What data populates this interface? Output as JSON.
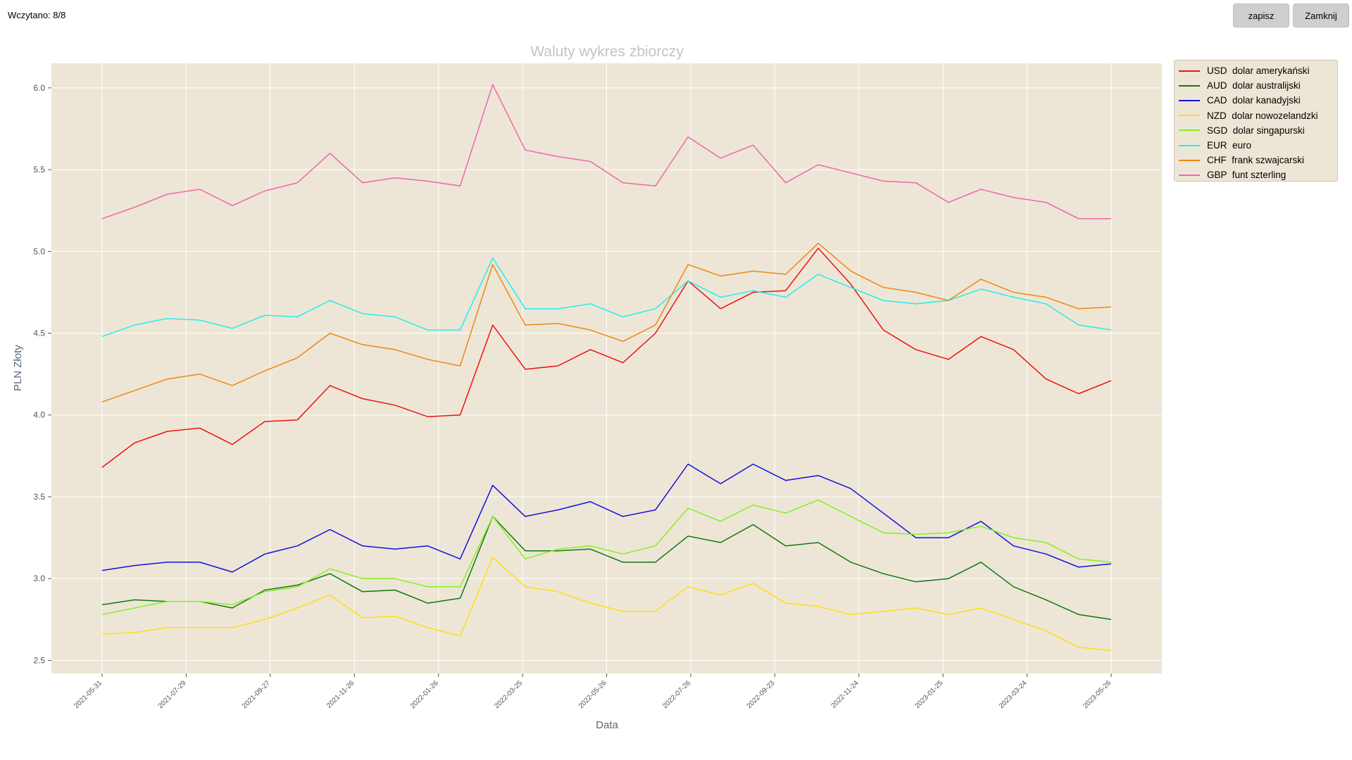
{
  "status_text": "Wczytano: 8/8",
  "buttons": {
    "save": "zapisz",
    "close": "Zamknij"
  },
  "chart_data": {
    "type": "line",
    "title": "Waluty wykres zbiorczy",
    "xlabel": "Data",
    "ylabel": "PLN Złoty",
    "ylim": [
      2.42,
      6.15
    ],
    "yticks": [
      "2.5",
      "3.0",
      "3.5",
      "4.0",
      "4.5",
      "5.0",
      "5.5",
      "6.0"
    ],
    "xticks": [
      "2021-05-31",
      "2021-07-29",
      "2021-09-27",
      "2021-11-26",
      "2022-01-26",
      "2022-03-25",
      "2022-05-26",
      "2022-07-26",
      "2022-09-23",
      "2022-11-24",
      "2023-01-25",
      "2023-03-24",
      "2023-05-26"
    ],
    "grid": true,
    "legend_position": "outside-top-right",
    "background_color": "#ede6d6",
    "series": [
      {
        "name": "USD  dolar amerykański",
        "color": "#ee1111",
        "values": [
          3.68,
          3.83,
          3.9,
          3.92,
          3.82,
          3.96,
          3.97,
          4.18,
          4.1,
          4.06,
          3.99,
          4.0,
          4.55,
          4.28,
          4.3,
          4.4,
          4.32,
          4.5,
          4.82,
          4.65,
          4.75,
          4.76,
          5.02,
          4.8,
          4.52,
          4.4,
          4.34,
          4.48,
          4.4,
          4.22,
          4.13,
          4.21
        ]
      },
      {
        "name": "AUD  dolar australijski",
        "color": "#117711",
        "values": [
          2.84,
          2.87,
          2.86,
          2.86,
          2.82,
          2.93,
          2.96,
          3.03,
          2.92,
          2.93,
          2.85,
          2.88,
          3.38,
          3.17,
          3.17,
          3.18,
          3.1,
          3.1,
          3.26,
          3.22,
          3.33,
          3.2,
          3.22,
          3.1,
          3.03,
          2.98,
          3.0,
          3.1,
          2.95,
          2.87,
          2.78,
          2.75
        ]
      },
      {
        "name": "CAD  dolar kanadyjski",
        "color": "#1111dd",
        "values": [
          3.05,
          3.08,
          3.1,
          3.1,
          3.04,
          3.15,
          3.2,
          3.3,
          3.2,
          3.18,
          3.2,
          3.12,
          3.57,
          3.38,
          3.42,
          3.47,
          3.38,
          3.42,
          3.7,
          3.58,
          3.7,
          3.6,
          3.63,
          3.55,
          3.4,
          3.25,
          3.25,
          3.35,
          3.2,
          3.15,
          3.07,
          3.09
        ]
      },
      {
        "name": "NZD  dolar nowozelandzki",
        "color": "#ffdd11",
        "values": [
          2.66,
          2.67,
          2.7,
          2.7,
          2.7,
          2.75,
          2.82,
          2.9,
          2.76,
          2.77,
          2.7,
          2.65,
          3.13,
          2.95,
          2.92,
          2.85,
          2.8,
          2.8,
          2.95,
          2.9,
          2.97,
          2.85,
          2.83,
          2.78,
          2.8,
          2.82,
          2.78,
          2.82,
          2.75,
          2.68,
          2.58,
          2.56
        ]
      },
      {
        "name": "SGD  dolar singapurski",
        "color": "#88ee22",
        "values": [
          2.78,
          2.82,
          2.86,
          2.86,
          2.84,
          2.92,
          2.95,
          3.06,
          3.0,
          3.0,
          2.95,
          2.95,
          3.38,
          3.12,
          3.18,
          3.2,
          3.15,
          3.2,
          3.43,
          3.35,
          3.45,
          3.4,
          3.48,
          3.38,
          3.28,
          3.27,
          3.28,
          3.32,
          3.25,
          3.22,
          3.12,
          3.1
        ]
      },
      {
        "name": "EUR  euro",
        "color": "#22eeee",
        "values": [
          4.48,
          4.55,
          4.59,
          4.58,
          4.53,
          4.61,
          4.6,
          4.7,
          4.62,
          4.6,
          4.52,
          4.52,
          4.96,
          4.65,
          4.65,
          4.68,
          4.6,
          4.65,
          4.82,
          4.72,
          4.76,
          4.72,
          4.86,
          4.78,
          4.7,
          4.68,
          4.7,
          4.77,
          4.72,
          4.68,
          4.55,
          4.52
        ]
      },
      {
        "name": "CHF  frank szwajcarski",
        "color": "#ee8811",
        "values": [
          4.08,
          4.15,
          4.22,
          4.25,
          4.18,
          4.27,
          4.35,
          4.5,
          4.43,
          4.4,
          4.34,
          4.3,
          4.92,
          4.55,
          4.56,
          4.52,
          4.45,
          4.55,
          4.92,
          4.85,
          4.88,
          4.86,
          5.05,
          4.88,
          4.78,
          4.75,
          4.7,
          4.83,
          4.75,
          4.72,
          4.65,
          4.66
        ]
      },
      {
        "name": "GBP  funt szterling",
        "color": "#ee66aa",
        "values": [
          5.2,
          5.27,
          5.35,
          5.38,
          5.28,
          5.37,
          5.42,
          5.6,
          5.42,
          5.45,
          5.43,
          5.4,
          6.02,
          5.62,
          5.58,
          5.55,
          5.42,
          5.4,
          5.7,
          5.57,
          5.65,
          5.42,
          5.53,
          5.48,
          5.43,
          5.42,
          5.3,
          5.38,
          5.33,
          5.3,
          5.2,
          5.2
        ]
      }
    ]
  }
}
